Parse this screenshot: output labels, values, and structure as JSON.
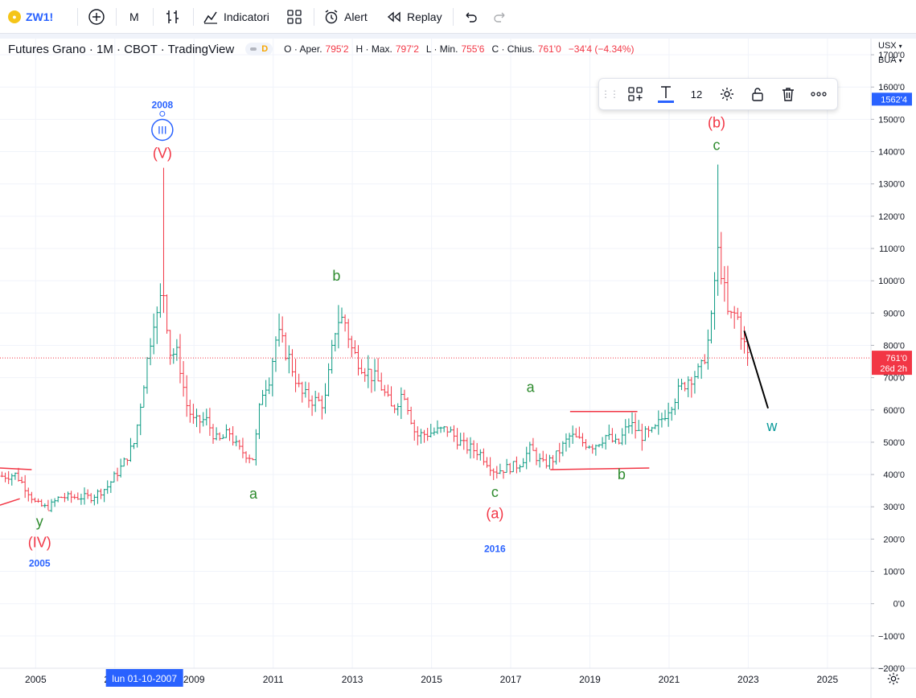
{
  "toolbar": {
    "symbol": "ZW1!",
    "interval": "M",
    "indicators_label": "Indicatori",
    "alert_label": "Alert",
    "replay_label": "Replay"
  },
  "legend": {
    "title": "Futures Grano · 1M · CBOT · TradingView",
    "data_flag": "D",
    "open_label": "O · Aper.",
    "open_value": "795'2",
    "high_label": "H · Max.",
    "high_value": "797'2",
    "low_label": "L · Min.",
    "low_value": "755'6",
    "close_label": "C · Chius.",
    "close_value": "761'0",
    "change_value": "−34'4 (−4.34%)"
  },
  "floating_toolbar": {
    "font_size": "12"
  },
  "price_axis": {
    "currency": "USX",
    "exchange": "BUA",
    "labels": [
      "1700'0",
      "1600'0",
      "1500'0",
      "1400'0",
      "1300'0",
      "1200'0",
      "1100'0",
      "1000'0",
      "900'0",
      "800'0",
      "700'0",
      "600'0",
      "500'0",
      "400'0",
      "300'0",
      "200'0",
      "100'0",
      "0'0",
      "−100'0",
      "−200'0"
    ],
    "marker_top": "1562'4",
    "last_price": "761'0",
    "countdown": "26d 2h"
  },
  "time_axis": {
    "labels": [
      "2005",
      "2007",
      "2009",
      "2011",
      "2013",
      "2015",
      "2017",
      "2019",
      "2021",
      "2023",
      "2025"
    ],
    "crosshair_label": "lun 01-10-2007"
  },
  "colors": {
    "up": "#089981",
    "down": "#f23645",
    "wave_red": "#f23645",
    "wave_green": "#2e8b2e",
    "wave_blue": "#2962ff",
    "wave_teal": "#0a9a9a",
    "accent": "#2962ff"
  },
  "chart_data": {
    "type": "ohlc",
    "title": "Futures Grano · 1M · CBOT · TradingView",
    "xlabel": "",
    "ylabel": "",
    "ylim": [
      -200,
      1750
    ],
    "x_range": [
      2004.1,
      2026.1
    ],
    "price_path": [
      [
        2004.2,
        395
      ],
      [
        2004.5,
        400
      ],
      [
        2004.8,
        350
      ],
      [
        2005.0,
        310
      ],
      [
        2005.3,
        295
      ],
      [
        2005.6,
        330
      ],
      [
        2006.0,
        330
      ],
      [
        2006.4,
        330
      ],
      [
        2006.8,
        360
      ],
      [
        2007.2,
        430
      ],
      [
        2007.5,
        500
      ],
      [
        2007.8,
        740
      ],
      [
        2008.0,
        900
      ],
      [
        2008.1,
        880
      ],
      [
        2008.2,
        1000
      ],
      [
        2008.4,
        780
      ],
      [
        2008.6,
        770
      ],
      [
        2008.8,
        620
      ],
      [
        2009.0,
        560
      ],
      [
        2009.3,
        570
      ],
      [
        2009.6,
        500
      ],
      [
        2009.9,
        530
      ],
      [
        2010.1,
        480
      ],
      [
        2010.5,
        450
      ],
      [
        2010.7,
        650
      ],
      [
        2010.9,
        700
      ],
      [
        2011.1,
        840
      ],
      [
        2011.4,
        760
      ],
      [
        2011.7,
        650
      ],
      [
        2012.0,
        630
      ],
      [
        2012.3,
        620
      ],
      [
        2012.6,
        880
      ],
      [
        2012.8,
        880
      ],
      [
        2013.0,
        780
      ],
      [
        2013.3,
        730
      ],
      [
        2013.7,
        680
      ],
      [
        2014.0,
        600
      ],
      [
        2014.3,
        660
      ],
      [
        2014.6,
        520
      ],
      [
        2015.0,
        530
      ],
      [
        2015.4,
        540
      ],
      [
        2015.8,
        490
      ],
      [
        2016.2,
        470
      ],
      [
        2016.6,
        410
      ],
      [
        2016.9,
        420
      ],
      [
        2017.2,
        430
      ],
      [
        2017.5,
        480
      ],
      [
        2017.8,
        430
      ],
      [
        2018.1,
        450
      ],
      [
        2018.5,
        520
      ],
      [
        2018.8,
        500
      ],
      [
        2019.1,
        490
      ],
      [
        2019.4,
        520
      ],
      [
        2019.7,
        490
      ],
      [
        2020.0,
        560
      ],
      [
        2020.3,
        520
      ],
      [
        2020.6,
        530
      ],
      [
        2020.9,
        590
      ],
      [
        2021.2,
        650
      ],
      [
        2021.5,
        700
      ],
      [
        2021.8,
        720
      ],
      [
        2022.0,
        820
      ],
      [
        2022.1,
        900
      ],
      [
        2022.2,
        1100
      ],
      [
        2022.3,
        1050
      ],
      [
        2022.5,
        880
      ],
      [
        2022.7,
        900
      ],
      [
        2022.9,
        800
      ],
      [
        2023.0,
        761
      ]
    ],
    "major_high": [
      2008.2,
      1350
    ],
    "major_low_2005": [
      2005.3,
      290
    ],
    "major_high_2022": [
      2022.2,
      1360
    ],
    "wave_labels": [
      {
        "text": "2008",
        "x": 2008.2,
        "y": 1535,
        "color": "blue"
      },
      {
        "text": "III",
        "x": 2008.2,
        "y": 1455,
        "color": "blue",
        "circled": true
      },
      {
        "text": "(V)",
        "x": 2008.2,
        "y": 1380,
        "color": "red"
      },
      {
        "text": "y",
        "x": 2005.1,
        "y": 240,
        "color": "green"
      },
      {
        "text": "(IV)",
        "x": 2005.1,
        "y": 175,
        "color": "red"
      },
      {
        "text": "2005",
        "x": 2005.1,
        "y": 115,
        "color": "blue"
      },
      {
        "text": "a",
        "x": 2010.5,
        "y": 325,
        "color": "green"
      },
      {
        "text": "b",
        "x": 2012.6,
        "y": 1000,
        "color": "green"
      },
      {
        "text": "a",
        "x": 2017.5,
        "y": 655,
        "color": "green"
      },
      {
        "text": "c",
        "x": 2016.6,
        "y": 330,
        "color": "green"
      },
      {
        "text": "(a)",
        "x": 2016.6,
        "y": 265,
        "color": "red"
      },
      {
        "text": "2016",
        "x": 2016.6,
        "y": 160,
        "color": "blue"
      },
      {
        "text": "b",
        "x": 2019.8,
        "y": 385,
        "color": "green"
      },
      {
        "text": "(b)",
        "x": 2022.2,
        "y": 1475,
        "color": "red"
      },
      {
        "text": "c",
        "x": 2022.2,
        "y": 1405,
        "color": "green"
      },
      {
        "text": "w",
        "x": 2023.6,
        "y": 535,
        "color": "teal"
      }
    ],
    "trendlines_red": [
      [
        [
          2004.1,
          420
        ],
        [
          2004.1,
          420
        ]
      ],
      [
        [
          2004.1,
          420
        ],
        [
          2004.1,
          410
        ]
      ]
    ],
    "forecast_line": [
      [
        2022.9,
        845
      ],
      [
        2023.5,
        605
      ]
    ],
    "grid": true
  }
}
